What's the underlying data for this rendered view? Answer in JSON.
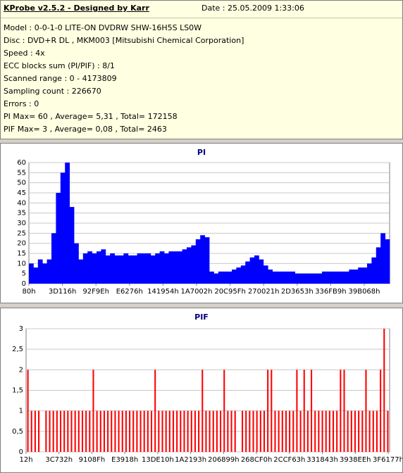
{
  "info": {
    "title": "KProbe v2.5.2 - Designed by Karr",
    "date": "Date : 25.05.2009 1:33:06",
    "lines": [
      "Model : 0-0-1-0 LITE-ON DVDRW SHW-16H5S  LS0W",
      "Disc : DVD+R DL , MKM003 [Mitsubishi Chemical Corporation]",
      "Speed : 4x",
      "ECC blocks sum (PI/PIF) : 8/1",
      "Scanned range : 0 - 4173809",
      "Sampling count : 226670",
      "Errors : 0",
      "PI Max= 60 , Average= 5,31 , Total= 172158",
      "PIF Max= 3 , Average= 0,08 , Total= 2463"
    ]
  },
  "colors": {
    "pi_fill": "#0000ff",
    "pif_fill": "#ff0000",
    "title": "#00007f",
    "panel_bg": "#d4d0c8",
    "info_bg": "#ffffe1"
  },
  "chart_data": [
    {
      "type": "area",
      "title": "PI",
      "ylim": [
        0,
        60
      ],
      "yticks": [
        "0",
        "5",
        "10",
        "15",
        "20",
        "25",
        "30",
        "35",
        "40",
        "45",
        "50",
        "55",
        "60"
      ],
      "xticks": [
        "80h",
        "3D116h",
        "92F9Eh",
        "E6276h",
        "141954h",
        "1A7002h",
        "20C95Fh",
        "270021h",
        "2D3653h",
        "336FB9h",
        "39B068h"
      ],
      "grid": true,
      "series": [
        {
          "values": [
            10,
            8,
            12,
            10,
            12,
            25,
            45,
            55,
            60,
            38,
            20,
            12,
            15,
            16,
            15,
            16,
            17,
            14,
            15,
            14,
            14,
            15,
            14,
            14,
            15,
            15,
            15,
            14,
            15,
            16,
            15,
            16,
            16,
            16,
            17,
            18,
            19,
            22,
            24,
            23,
            6,
            5,
            6,
            6,
            6,
            7,
            8,
            9,
            11,
            13,
            14,
            12,
            9,
            7,
            6,
            6,
            6,
            6,
            6,
            5,
            5,
            5,
            5,
            5,
            5,
            6,
            6,
            6,
            6,
            6,
            6,
            7,
            7,
            8,
            8,
            10,
            13,
            18,
            25,
            22
          ]
        }
      ]
    },
    {
      "type": "bar",
      "title": "PIF",
      "ylim": [
        0,
        3
      ],
      "yticks": [
        "0",
        "0,5",
        "1",
        "1,5",
        "2",
        "2,5",
        "3"
      ],
      "xticks": [
        "12h",
        "3C732h",
        "9108Fh",
        "E3918h",
        "13DE10h",
        "1A2193h",
        "206899h",
        "268CF0h",
        "2CCF63h",
        "331843h",
        "3938EEh",
        "3F6177h"
      ],
      "grid": true,
      "series": [
        {
          "values": [
            2,
            1,
            1,
            1,
            0,
            1,
            1,
            1,
            1,
            1,
            1,
            1,
            1,
            1,
            1,
            1,
            1,
            1,
            2,
            1,
            1,
            1,
            1,
            1,
            1,
            1,
            1,
            1,
            1,
            1,
            1,
            1,
            1,
            1,
            1,
            2,
            1,
            1,
            1,
            1,
            1,
            1,
            1,
            1,
            1,
            1,
            1,
            1,
            2,
            1,
            1,
            1,
            1,
            1,
            2,
            1,
            1,
            1,
            0,
            1,
            1,
            1,
            1,
            1,
            1,
            1,
            2,
            2,
            1,
            1,
            1,
            1,
            1,
            1,
            2,
            1,
            2,
            1,
            2,
            1,
            1,
            1,
            1,
            1,
            1,
            1,
            2,
            2,
            1,
            1,
            1,
            1,
            1,
            2,
            1,
            1,
            1,
            2,
            3,
            1
          ]
        }
      ]
    }
  ]
}
